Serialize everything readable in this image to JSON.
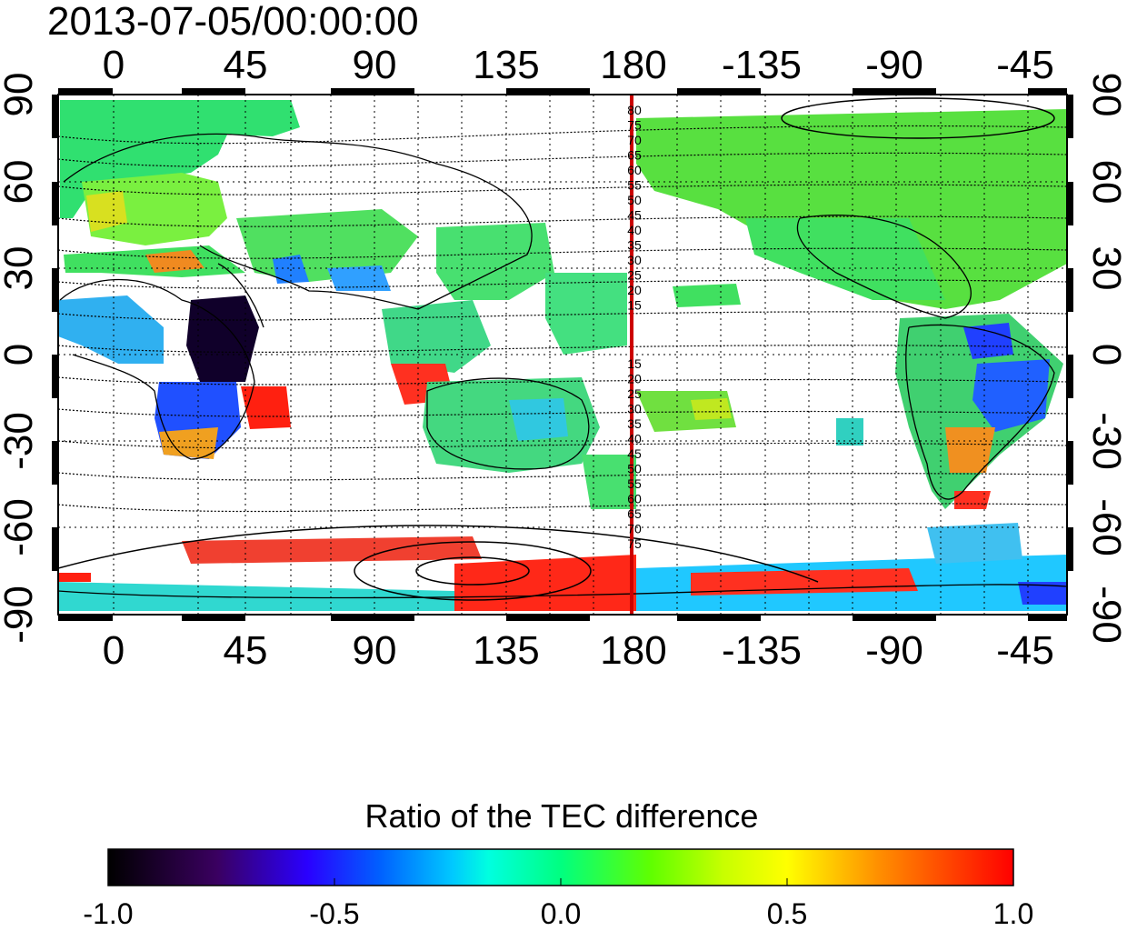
{
  "title": "2013-07-05/00:00:00",
  "axes": {
    "top_ticks": [
      "0",
      "45",
      "90",
      "135",
      "180",
      "-135",
      "-90",
      "-45"
    ],
    "bottom_ticks": [
      "0",
      "45",
      "90",
      "135",
      "180",
      "-135",
      "-90",
      "-45"
    ],
    "left_ticks": [
      "90",
      "60",
      "30",
      "0",
      "-30",
      "-60",
      "-90"
    ],
    "right_ticks": [
      "90",
      "60",
      "30",
      "0",
      "-30",
      "-60",
      "-90"
    ]
  },
  "meridian": {
    "color": "#cc0000",
    "north_labels": [
      "80",
      "75",
      "70",
      "65",
      "60",
      "55",
      "50",
      "45",
      "40",
      "35",
      "30",
      "25",
      "20",
      "15"
    ],
    "south_labels": [
      "15",
      "20",
      "25",
      "30",
      "35",
      "40",
      "45",
      "50",
      "55",
      "60",
      "65",
      "70",
      "75"
    ]
  },
  "colorbar": {
    "title": "Ratio of the TEC difference",
    "ticks": [
      "-1.0",
      "-0.5",
      "0.0",
      "0.5",
      "1.0"
    ]
  }
}
